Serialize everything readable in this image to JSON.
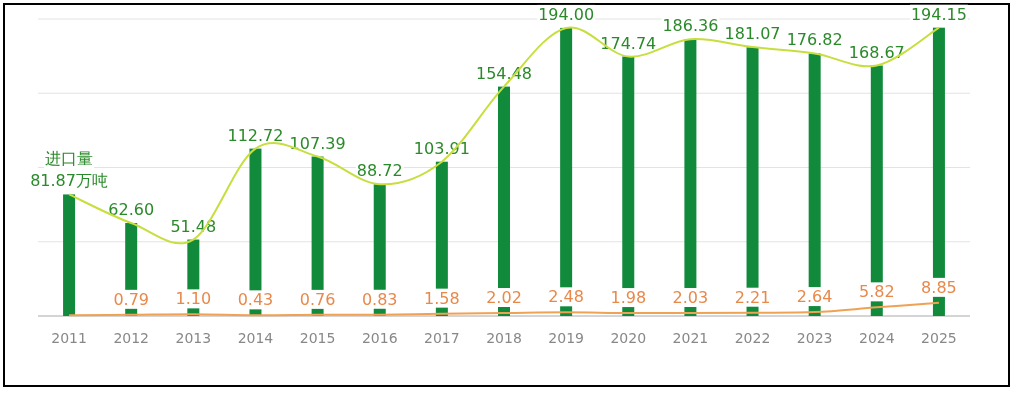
{
  "chart_data": {
    "type": "bar",
    "categories": [
      "2011",
      "2012",
      "2013",
      "2014",
      "2015",
      "2016",
      "2017",
      "2018",
      "2019",
      "2020",
      "2021",
      "2022",
      "2023",
      "2024",
      "2025"
    ],
    "series": [
      {
        "color": "#118a3c",
        "values": [
          81.87,
          62.6,
          51.48,
          112.72,
          107.39,
          88.72,
          103.91,
          154.48,
          194.0,
          174.74,
          186.36,
          181.07,
          176.82,
          168.67,
          194.15
        ],
        "value_labels": [
          "81.87万吨",
          "62.60",
          "51.48",
          "112.72",
          "107.39",
          "88.72",
          "103.91",
          "154.48",
          "194.00",
          "174.74",
          "186.36",
          "181.07",
          "176.82",
          "168.67",
          "194.15"
        ]
      },
      {
        "type": "line",
        "color": "#c8de3e",
        "values": [
          81.87,
          62.6,
          51.48,
          112.72,
          107.39,
          88.72,
          103.91,
          154.48,
          194.0,
          174.74,
          186.36,
          181.07,
          176.82,
          168.67,
          194.15
        ]
      },
      {
        "type": "line",
        "color": "#f0a254",
        "values": [
          0.5,
          0.79,
          1.1,
          0.43,
          0.76,
          0.83,
          1.58,
          2.02,
          2.48,
          1.98,
          2.03,
          2.21,
          2.64,
          5.82,
          8.85
        ],
        "value_labels": [
          null,
          "0.79",
          "1.10",
          "0.43",
          "0.76",
          "0.83",
          "1.58",
          "2.02",
          "2.48",
          "1.98",
          "2.03",
          "2.21",
          "2.64",
          "5.82",
          "8.85"
        ]
      }
    ],
    "annotations": [
      {
        "text": "进口量",
        "x": "2011",
        "y": 81.87
      }
    ],
    "ylim": [
      0,
      200
    ],
    "yticks": [
      {
        "value": 0,
        "label": null
      },
      {
        "value": 50,
        "label": null
      },
      {
        "value": 100,
        "label": null
      },
      {
        "value": 150,
        "label": null
      },
      {
        "value": 200,
        "label": null
      }
    ],
    "grid": "y",
    "tick_labels": "x"
  }
}
